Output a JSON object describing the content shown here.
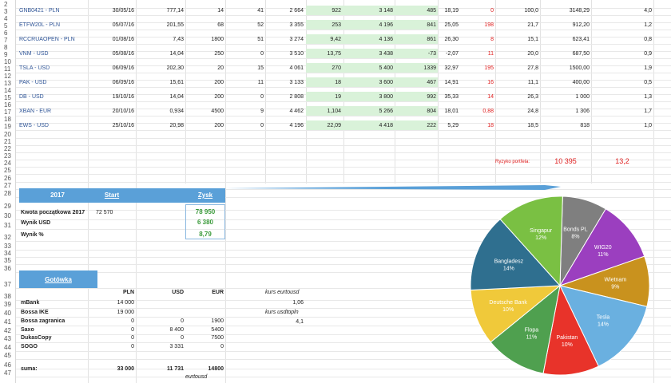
{
  "row_numbers": [
    "2",
    "3",
    "4",
    "5",
    "6",
    "7",
    "8",
    "9",
    "10",
    "11",
    "12",
    "13",
    "14",
    "15",
    "16",
    "17",
    "18",
    "19",
    "20",
    "21",
    "22",
    "23",
    "24",
    "25",
    "26",
    "27",
    "28",
    "29",
    "30",
    "31",
    "32",
    "33",
    "34",
    "35",
    "36",
    "37",
    "38",
    "39",
    "40",
    "41",
    "42",
    "43",
    "44",
    "45",
    "46",
    "47"
  ],
  "tickers": [
    {
      "name": "GNB0421 - PLN",
      "date": "30/05/16",
      "price": "777,14",
      "qty": "14",
      "n1": "41",
      "v1": "2 664",
      "g1": "922",
      "g2": "3 148",
      "g3": "485",
      "g4": "18,19",
      "red": "0",
      "p1": "100,0",
      "p2": "3148,29",
      "p3": "4,0"
    },
    {
      "name": "ETFW20L - PLN",
      "date": "05/07/16",
      "price": "201,55",
      "qty": "68",
      "n1": "52",
      "v1": "3 355",
      "g1": "253",
      "g2": "4 196",
      "g3": "841",
      "g4": "25,05",
      "red": "198",
      "p1": "21,7",
      "p2": "912,20",
      "p3": "1,2"
    },
    {
      "name": "RCCRUAOPEN - PLN",
      "date": "01/08/16",
      "price": "7,43",
      "qty": "1800",
      "n1": "51",
      "v1": "3 274",
      "g1": "9,42",
      "g2": "4 136",
      "g3": "861",
      "g4": "26,30",
      "red": "8",
      "p1": "15,1",
      "p2": "623,41",
      "p3": "0,8"
    },
    {
      "name": "VNM - USD",
      "date": "05/08/16",
      "price": "14,04",
      "qty": "250",
      "n1": "0",
      "v1": "3 510",
      "g1": "13,75",
      "g2": "3 438",
      "g3": "-73",
      "g4": "-2,07",
      "red": "11",
      "p1": "20,0",
      "p2": "687,50",
      "p3": "0,9"
    },
    {
      "name": "TSLA - USD",
      "date": "06/09/16",
      "price": "202,30",
      "qty": "20",
      "n1": "15",
      "v1": "4 061",
      "g1": "270",
      "g2": "5 400",
      "g3": "1339",
      "g4": "32,97",
      "red": "195",
      "p1": "27,8",
      "p2": "1500,00",
      "p3": "1,9"
    },
    {
      "name": "PAK - USD",
      "date": "06/09/16",
      "price": "15,61",
      "qty": "200",
      "n1": "11",
      "v1": "3 133",
      "g1": "18",
      "g2": "3 600",
      "g3": "467",
      "g4": "14,91",
      "red": "16",
      "p1": "11,1",
      "p2": "400,00",
      "p3": "0,5"
    },
    {
      "name": "DB - USD",
      "date": "19/10/16",
      "price": "14,04",
      "qty": "200",
      "n1": "0",
      "v1": "2 808",
      "g1": "19",
      "g2": "3 800",
      "g3": "992",
      "g4": "35,33",
      "red": "14",
      "p1": "26,3",
      "p2": "1 000",
      "p3": "1,3"
    },
    {
      "name": "XBAN - EUR",
      "date": "20/10/16",
      "price": "0,934",
      "qty": "4500",
      "n1": "9",
      "v1": "4 462",
      "g1": "1,104",
      "g2": "5 266",
      "g3": "804",
      "g4": "18,01",
      "red": "0,88",
      "p1": "24,8",
      "p2": "1 306",
      "p3": "1,7"
    },
    {
      "name": "EWS - USD",
      "date": "25/10/16",
      "price": "20,98",
      "qty": "200",
      "n1": "0",
      "v1": "4 196",
      "g1": "22,09",
      "g2": "4 418",
      "g3": "222",
      "g4": "5,29",
      "red": "18",
      "p1": "18,5",
      "p2": "818",
      "p3": "1,0"
    }
  ],
  "risk": {
    "label": "Ryzyko portfela:",
    "value": "10 395",
    "pct": "13,2"
  },
  "year_band": {
    "year": "2017",
    "start": "Start",
    "zysk": "Zysk"
  },
  "summary": [
    {
      "label": "Kwota początkowa 2017",
      "start": "72 570",
      "zysk": "78 950"
    },
    {
      "label": "Wynik USD",
      "start": "",
      "zysk": "6 380"
    },
    {
      "label": "Wynik %",
      "start": "",
      "zysk": "8,79"
    }
  ],
  "cash_band": {
    "title": "Gotówka"
  },
  "cash_headers": {
    "pln": "PLN",
    "usd": "USD",
    "eur": "EUR"
  },
  "cash_rows": [
    {
      "name": "mBank",
      "pln": "14 000",
      "usd": "",
      "eur": ""
    },
    {
      "name": "Bossa IKE",
      "pln": "19 000",
      "usd": "",
      "eur": ""
    },
    {
      "name": "Bossa zagranica",
      "pln": "0",
      "usd": "0",
      "eur": "1900"
    },
    {
      "name": "Saxo",
      "pln": "0",
      "usd": "8 400",
      "eur": "5400"
    },
    {
      "name": "DukasCopy",
      "pln": "0",
      "usd": "0",
      "eur": "7500"
    },
    {
      "name": "SOGO",
      "pln": "0",
      "usd": "3 331",
      "eur": "0"
    }
  ],
  "cash_sum": {
    "label": "suma:",
    "pln": "33 000",
    "usd": "11 731",
    "eur": "14800"
  },
  "cash_footer": "eurtousd",
  "rates": [
    {
      "label": "kurs eurtousd",
      "value": "1,06"
    },
    {
      "label": "kurs usdtopln",
      "value": "4,1"
    }
  ],
  "chart_data": {
    "type": "pie",
    "title": "",
    "slices": [
      {
        "name": "Bonds PL",
        "value": 8,
        "label": "8%",
        "color": "#7f7f7f"
      },
      {
        "name": "WIG20",
        "value": 11,
        "label": "11%",
        "color": "#9b3fbf"
      },
      {
        "name": "Wietnam",
        "value": 9,
        "label": "9%",
        "color": "#c9921e"
      },
      {
        "name": "Tesla",
        "value": 14,
        "label": "14%",
        "color": "#6ab0e0"
      },
      {
        "name": "Pakistan",
        "value": 10,
        "label": "10%",
        "color": "#e8332a"
      },
      {
        "name": "Flopa",
        "value": 11,
        "label": "11%",
        "color": "#4fa04f"
      },
      {
        "name": "Deutsche Bank",
        "value": 10,
        "label": "10%",
        "color": "#f0c93a"
      },
      {
        "name": "Bangladesz",
        "value": 14,
        "label": "14%",
        "color": "#2f6f8f"
      },
      {
        "name": "Singapur",
        "value": 12,
        "label": "12%",
        "color": "#7ac043"
      }
    ]
  }
}
